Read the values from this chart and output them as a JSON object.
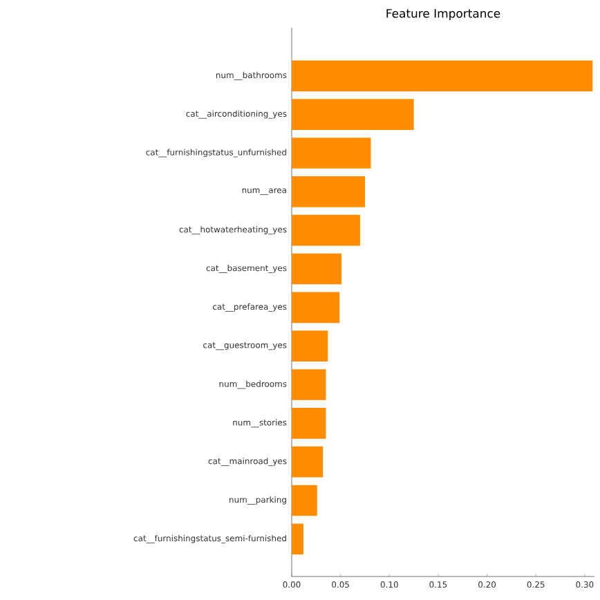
{
  "chart_data": {
    "type": "bar",
    "orientation": "horizontal",
    "title": "Feature Importance",
    "categories": [
      "num__bathrooms",
      "cat__airconditioning_yes",
      "cat__furnishingstatus_unfurnished",
      "num__area",
      "cat__hotwaterheating_yes",
      "cat__basement_yes",
      "cat__prefarea_yes",
      "cat__guestroom_yes",
      "num__bedrooms",
      "num__stories",
      "cat__mainroad_yes",
      "num__parking",
      "cat__furnishingstatus_semi-furnished"
    ],
    "values": [
      0.308,
      0.125,
      0.081,
      0.075,
      0.07,
      0.051,
      0.049,
      0.037,
      0.035,
      0.035,
      0.032,
      0.026,
      0.012
    ],
    "color": "#ff8c00",
    "xlim": [
      0,
      0.31
    ],
    "xticks": [
      {
        "value": 0,
        "label": "0.00"
      },
      {
        "value": 0.05,
        "label": "0.05"
      },
      {
        "value": 0.1,
        "label": "0.10"
      },
      {
        "value": 0.15,
        "label": "0.15"
      },
      {
        "value": 0.2,
        "label": "0.20"
      },
      {
        "value": 0.25,
        "label": "0.25"
      },
      {
        "value": 0.3,
        "label": "0.30"
      }
    ]
  }
}
